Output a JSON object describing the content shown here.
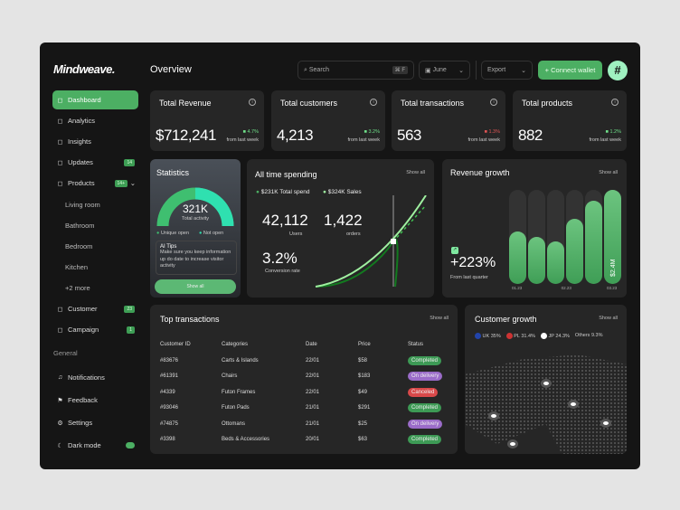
{
  "app": {
    "logo": "Mindweave.",
    "page_title": "Overview"
  },
  "sidebar": {
    "items": [
      {
        "label": "Dashboard",
        "icon": "home-icon",
        "active": true
      },
      {
        "label": "Analytics",
        "icon": "chart-icon"
      },
      {
        "label": "Insights",
        "icon": "insights-icon"
      },
      {
        "label": "Updates",
        "icon": "clock-icon",
        "badge": "14"
      },
      {
        "label": "Products",
        "icon": "bag-icon",
        "badge": "14+"
      },
      {
        "label": "Living room",
        "sub": true
      },
      {
        "label": "Bathroom",
        "sub": true
      },
      {
        "label": "Bedroom",
        "sub": true
      },
      {
        "label": "Kitchen",
        "sub": true
      },
      {
        "label": "+2 more",
        "sub": true
      },
      {
        "label": "Customer",
        "icon": "users-icon",
        "badge": "23"
      },
      {
        "label": "Campaign",
        "icon": "trophy-icon",
        "badge": "1"
      }
    ],
    "general_label": "General",
    "general": [
      {
        "label": "Notifications",
        "icon": "bell-icon"
      },
      {
        "label": "Feedback",
        "icon": "flag-icon"
      },
      {
        "label": "Settings",
        "icon": "gear-icon"
      },
      {
        "label": "Dark mode",
        "icon": "moon-icon",
        "toggle": true
      }
    ]
  },
  "header": {
    "search_placeholder": "Search",
    "shortcut": "⌘ F",
    "month": "June",
    "export": "Export",
    "connect": "+ Connect wallet"
  },
  "kpis": [
    {
      "title": "Total Revenue",
      "value": "$712,241",
      "change": "4.7%",
      "up": true,
      "from": "from last week"
    },
    {
      "title": "Total customers",
      "value": "4,213",
      "change": "3.2%",
      "up": true,
      "from": "from last week"
    },
    {
      "title": "Total transactions",
      "value": "563",
      "change": "1.3%",
      "up": false,
      "from": "from last week"
    },
    {
      "title": "Total products",
      "value": "882",
      "change": "1.2%",
      "up": true,
      "from": "from last week"
    }
  ],
  "statistics": {
    "title": "Statistics",
    "value": "321K",
    "label": "Total activity",
    "legend": [
      "Unique open",
      "Not open"
    ],
    "tips_title": "AI Tips",
    "tips": "Make sure you keep information up do date to increase visitor activity",
    "button": "Show all"
  },
  "spending": {
    "title": "All time spending",
    "show_all": "Show all",
    "legend": [
      "$231K Total spend",
      "$324K Sales"
    ],
    "users": "42,112",
    "users_label": "Users",
    "orders": "1,422",
    "orders_label": "orders",
    "conversion": "3.2%",
    "conversion_label": "Conversion rate"
  },
  "revenue": {
    "title": "Revenue growth",
    "show_all": "Show all",
    "value": "+223%",
    "label": "From last quarter",
    "bar_label": "$2.4M",
    "bars": [
      0.56,
      0.5,
      0.45,
      0.69,
      0.88,
      1.0
    ],
    "ticks": [
      "01.23",
      "02.23",
      "03.23"
    ]
  },
  "transactions": {
    "title": "Top transactions",
    "show_all": "Show all",
    "columns": [
      "Customer ID",
      "Categories",
      "Date",
      "Price",
      "Status"
    ],
    "rows": [
      [
        "#83676",
        "Carts & Islands",
        "22/01",
        "$58",
        "Completed"
      ],
      [
        "#61391",
        "Chairs",
        "22/01",
        "$183",
        "On delivery"
      ],
      [
        "#4339",
        "Futon Frames",
        "22/01",
        "$49",
        "Canceled"
      ],
      [
        "#93046",
        "Futon Pads",
        "21/01",
        "$291",
        "Completed"
      ],
      [
        "#74875",
        "Ottomans",
        "21/01",
        "$25",
        "On delivery"
      ],
      [
        "#3398",
        "Beds & Accessories",
        "20/01",
        "$63",
        "Completed"
      ]
    ]
  },
  "status_colors": {
    "Completed": "#3d9a55",
    "On delivery": "#9b6cc9",
    "Canceled": "#d9494a"
  },
  "growth": {
    "title": "Customer growth",
    "show_all": "Show all",
    "countries": [
      {
        "label": "UK",
        "value": "35%"
      },
      {
        "label": "PL",
        "value": "31.4%"
      },
      {
        "label": "JP",
        "value": "24.3%"
      },
      {
        "label": "Others",
        "value": "9.3%"
      }
    ]
  },
  "colors": {
    "accent": "#4caf63",
    "card": "#262626",
    "bg": "#151515"
  }
}
